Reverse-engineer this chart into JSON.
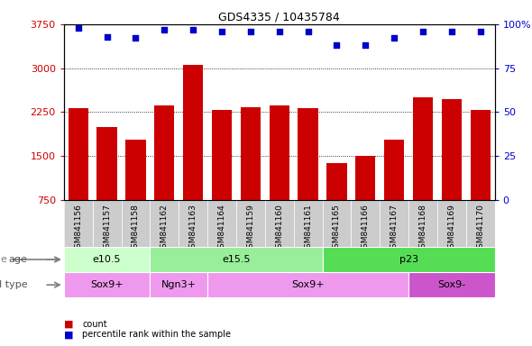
{
  "title": "GDS4335 / 10435784",
  "samples": [
    "GSM841156",
    "GSM841157",
    "GSM841158",
    "GSM841162",
    "GSM841163",
    "GSM841164",
    "GSM841159",
    "GSM841160",
    "GSM841161",
    "GSM841165",
    "GSM841166",
    "GSM841167",
    "GSM841168",
    "GSM841169",
    "GSM841170"
  ],
  "counts": [
    2320,
    2000,
    1780,
    2370,
    3050,
    2280,
    2340,
    2360,
    2320,
    1380,
    1500,
    1780,
    2500,
    2470,
    2280
  ],
  "percentile_ranks": [
    98,
    93,
    92,
    97,
    97,
    96,
    96,
    96,
    96,
    88,
    88,
    92,
    96,
    96,
    96
  ],
  "bar_color": "#cc0000",
  "dot_color": "#0000cc",
  "ymin": 750,
  "ymax": 3750,
  "yticks": [
    750,
    1500,
    2250,
    3000,
    3750
  ],
  "y2min": 0,
  "y2max": 100,
  "y2ticks": [
    0,
    25,
    50,
    75,
    100
  ],
  "age_groups": [
    {
      "label": "e10.5",
      "start": 0,
      "end": 3,
      "color": "#ccffcc"
    },
    {
      "label": "e15.5",
      "start": 3,
      "end": 9,
      "color": "#99ee99"
    },
    {
      "label": "p23",
      "start": 9,
      "end": 15,
      "color": "#55dd55"
    }
  ],
  "cell_type_groups": [
    {
      "label": "Sox9+",
      "start": 0,
      "end": 3,
      "color": "#ee99ee"
    },
    {
      "label": "Ngn3+",
      "start": 3,
      "end": 5,
      "color": "#ee99ee"
    },
    {
      "label": "Sox9+",
      "start": 5,
      "end": 12,
      "color": "#ee99ee"
    },
    {
      "label": "Sox9-",
      "start": 12,
      "end": 15,
      "color": "#cc55cc"
    }
  ],
  "tick_area_color": "#cccccc",
  "grid_dotted_at": [
    1500,
    2250,
    3000
  ],
  "bar_width": 0.7
}
